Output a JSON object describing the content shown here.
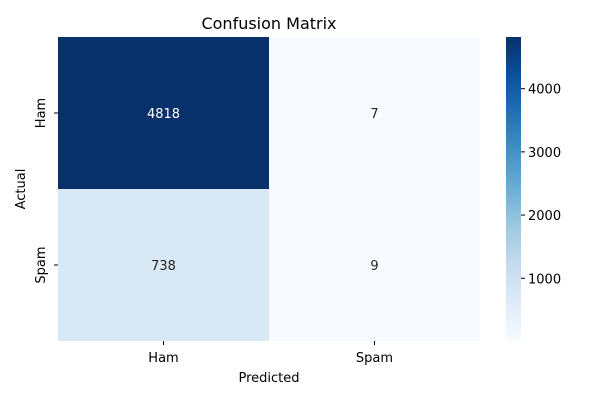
{
  "chart_data": {
    "type": "heatmap",
    "title": "Confusion Matrix",
    "xlabel": "Predicted",
    "ylabel": "Actual",
    "x_categories": [
      "Ham",
      "Spam"
    ],
    "y_categories": [
      "Ham",
      "Spam"
    ],
    "values": [
      [
        4818,
        7
      ],
      [
        738,
        9
      ]
    ],
    "colormap": "Blues",
    "colorbar": {
      "min": 7,
      "max": 4818,
      "ticks": [
        1000,
        2000,
        3000,
        4000
      ]
    },
    "grid": false,
    "legend": "colorbar-right"
  }
}
